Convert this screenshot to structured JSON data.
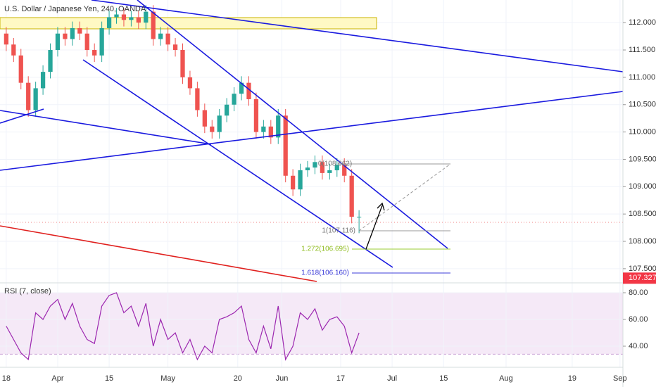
{
  "chart_data": [
    {
      "type": "candlestick",
      "title": "U.S. Dollar / Japanese Yen, 240, OANDA",
      "x": [
        0,
        2,
        4,
        6,
        8,
        10,
        12,
        14,
        16,
        18,
        20,
        22,
        24,
        26,
        28,
        30,
        32,
        34,
        36,
        38,
        40,
        42,
        44,
        46,
        48,
        50,
        52,
        54,
        56,
        58,
        60,
        62,
        64,
        66,
        68,
        70,
        72,
        74,
        76,
        78,
        80,
        82,
        84,
        86,
        88,
        90,
        92,
        94,
        96
      ],
      "open": [
        111.8,
        111.6,
        111.4,
        110.9,
        110.4,
        110.8,
        111.1,
        111.5,
        111.8,
        111.7,
        111.9,
        111.8,
        111.5,
        111.4,
        111.9,
        112.1,
        112.15,
        112.05,
        112.1,
        112.0,
        112.2,
        111.7,
        111.8,
        111.6,
        111.5,
        111.0,
        110.8,
        110.4,
        110.1,
        110.0,
        110.3,
        110.5,
        110.7,
        110.9,
        110.6,
        110.0,
        110.1,
        109.9,
        110.3,
        109.2,
        108.95,
        109.3,
        109.35,
        109.45,
        109.25,
        109.3,
        109.4,
        109.2,
        108.45
      ],
      "high": [
        111.92,
        111.72,
        111.52,
        111.02,
        110.92,
        111.22,
        111.62,
        111.92,
        111.92,
        112.02,
        112.02,
        111.92,
        111.62,
        112.02,
        112.22,
        112.27,
        112.27,
        112.22,
        112.22,
        112.32,
        112.32,
        111.92,
        111.92,
        111.72,
        111.62,
        111.12,
        110.92,
        110.52,
        110.22,
        110.42,
        110.62,
        110.82,
        111.02,
        111.02,
        110.72,
        110.22,
        110.22,
        110.42,
        110.42,
        109.32,
        109.42,
        109.47,
        109.57,
        109.57,
        109.42,
        109.52,
        109.52,
        109.32,
        108.57
      ],
      "low": [
        111.48,
        111.28,
        110.78,
        110.28,
        110.28,
        110.68,
        110.98,
        111.38,
        111.58,
        111.58,
        111.68,
        111.38,
        111.28,
        111.28,
        111.78,
        111.98,
        111.93,
        111.93,
        111.88,
        111.88,
        111.58,
        111.58,
        111.48,
        111.38,
        110.88,
        110.68,
        110.28,
        109.98,
        109.88,
        109.88,
        110.18,
        110.38,
        110.58,
        110.48,
        109.88,
        109.88,
        109.78,
        109.78,
        109.08,
        108.83,
        108.83,
        109.18,
        109.23,
        109.13,
        109.13,
        109.18,
        109.08,
        108.33,
        108.15
      ],
      "close": [
        111.6,
        111.4,
        110.9,
        110.4,
        110.8,
        111.1,
        111.5,
        111.8,
        111.7,
        111.9,
        111.8,
        111.5,
        111.4,
        111.9,
        112.1,
        112.15,
        112.05,
        112.1,
        112.0,
        112.2,
        111.7,
        111.8,
        111.6,
        111.5,
        111.0,
        110.8,
        110.4,
        110.1,
        110.0,
        110.3,
        110.5,
        110.7,
        110.9,
        110.6,
        110.0,
        110.1,
        109.9,
        110.3,
        109.2,
        108.95,
        109.3,
        109.35,
        109.45,
        109.25,
        109.3,
        109.4,
        109.2,
        108.45,
        108.45
      ],
      "up_color": "#26a69a",
      "down_color": "#ef5350",
      "xlim": [
        -1.7,
        167.8
      ],
      "ylim": [
        107.241,
        112.414
      ],
      "yticks": [
        {
          "value": 107.5,
          "label": "107.500"
        },
        {
          "value": 108,
          "label": "108.000"
        },
        {
          "value": 108.5,
          "label": "108.500"
        },
        {
          "value": 109,
          "label": "109.000"
        },
        {
          "value": 109.5,
          "label": "109.500"
        },
        {
          "value": 110,
          "label": "110.000"
        },
        {
          "value": 110.5,
          "label": "110.500"
        },
        {
          "value": 111,
          "label": "111.000"
        },
        {
          "value": 111.5,
          "label": "111.500"
        },
        {
          "value": 112,
          "label": "112.000"
        }
      ],
      "grid": true,
      "last_price": {
        "value": 107.327,
        "label": "107.327",
        "color": "#f23645"
      },
      "annotations": [
        "0(108.662)",
        "1(107.116)",
        "1.272(106.695)",
        "1.618(106.160)"
      ]
    },
    {
      "type": "line",
      "title": "RSI (7, close)",
      "x": [
        0,
        2,
        4,
        6,
        8,
        10,
        12,
        14,
        16,
        18,
        20,
        22,
        24,
        26,
        28,
        30,
        32,
        34,
        36,
        38,
        40,
        42,
        44,
        46,
        48,
        50,
        52,
        54,
        56,
        58,
        60,
        62,
        64,
        66,
        68,
        70,
        72,
        74,
        76,
        78,
        80,
        82,
        84,
        86,
        88,
        90,
        92,
        94,
        96
      ],
      "series": [
        {
          "name": "RSI",
          "color": "#9c27b0",
          "values": [
            55,
            45,
            35,
            30,
            65,
            60,
            70,
            75,
            60,
            72,
            55,
            45,
            42,
            70,
            78,
            80,
            65,
            70,
            55,
            72,
            40,
            60,
            45,
            50,
            35,
            45,
            30,
            40,
            35,
            60,
            62,
            65,
            70,
            45,
            35,
            55,
            38,
            70,
            30,
            40,
            65,
            60,
            68,
            52,
            60,
            62,
            55,
            35,
            50
          ]
        }
      ],
      "band": [
        34,
        80
      ],
      "xlim": [
        -1.7,
        167.8
      ],
      "ylim": [
        24.2,
        85.8
      ],
      "yticks": [
        {
          "value": 40,
          "label": "40.00"
        },
        {
          "value": 60,
          "label": "60.00"
        },
        {
          "value": 80,
          "label": "80.00"
        }
      ],
      "xticks": [
        {
          "value": 0,
          "label": "18"
        },
        {
          "value": 14,
          "label": "Apr"
        },
        {
          "value": 28,
          "label": "15"
        },
        {
          "value": 44,
          "label": "May"
        },
        {
          "value": 63,
          "label": "20"
        },
        {
          "value": 75,
          "label": "Jun"
        },
        {
          "value": 91,
          "label": "17"
        },
        {
          "value": 105,
          "label": "Jul"
        },
        {
          "value": 119,
          "label": "15"
        },
        {
          "value": 136,
          "label": "Aug"
        },
        {
          "value": 154,
          "label": "19"
        },
        {
          "value": 167,
          "label": "Sep"
        }
      ],
      "grid": true
    }
  ]
}
